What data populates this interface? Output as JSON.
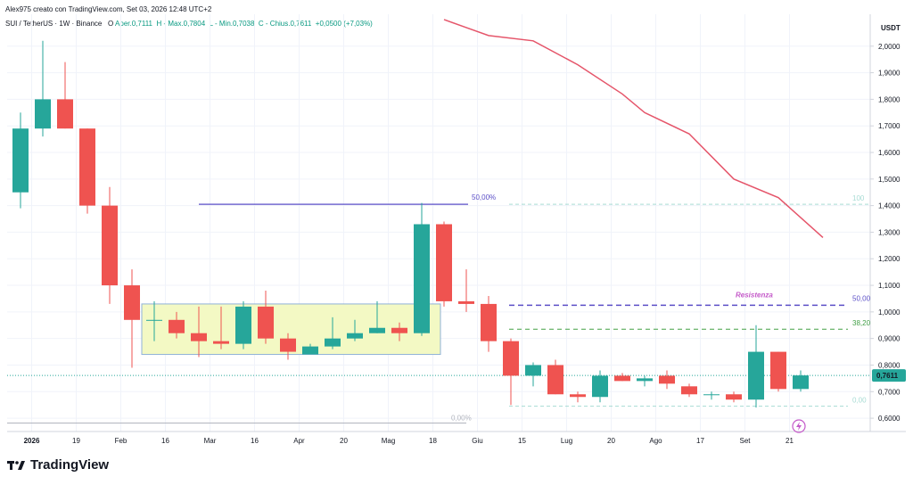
{
  "header": {
    "author_line": "Alex975 creato con TradingView.com, Set 03, 2026 12:48 UTC+2",
    "symbol": "SUI / TetherUS · 1W · Binance",
    "open_label": "O",
    "open_value": "Aper.0,7111",
    "high_value": "H - Max.0,7804",
    "low_value": "L - Min.0,7038",
    "close_value": "C - Chius.0,7611",
    "change_value": "+0,0500 (+7,03%)"
  },
  "footer": {
    "brand": "TradingView"
  },
  "colors": {
    "up": "#26a69a",
    "down": "#ef5350",
    "ma": "#e5556a",
    "box_fill": "#f3f9c4",
    "box_stroke": "#8fb1d8",
    "resistance": "#5b4fc7",
    "fib_green": "#43a047",
    "last_price_bg": "#26a69a"
  },
  "chart_data": {
    "type": "candlestick",
    "unit": "USDT",
    "y_axis": {
      "ticks": [
        "2,0000",
        "1,9000",
        "1,8000",
        "1,7000",
        "1,6000",
        "1,5000",
        "1,4000",
        "1,3000",
        "1,2000",
        "1,1000",
        "1,0000",
        "0,9000",
        "0,8000",
        "0,7000",
        "0,6000"
      ],
      "tick_values": [
        2.0,
        1.9,
        1.8,
        1.7,
        1.6,
        1.5,
        1.4,
        1.3,
        1.2,
        1.1,
        1.0,
        0.9,
        0.8,
        0.7,
        0.6
      ],
      "range": [
        0.55,
        2.12
      ],
      "scale": "linear"
    },
    "x_axis": {
      "labels": [
        "2026",
        "19",
        "Feb",
        "16",
        "Mar",
        "16",
        "Apr",
        "20",
        "Mag",
        "18",
        "Giu",
        "15",
        "Lug",
        "20",
        "Ago",
        "17",
        "Set",
        "21"
      ],
      "label_index": [
        1,
        3,
        5,
        7,
        9,
        11,
        13,
        15,
        17,
        19,
        21,
        23,
        25,
        27,
        29,
        31,
        33,
        35
      ]
    },
    "candles": [
      {
        "o": 1.45,
        "h": 1.75,
        "l": 1.39,
        "c": 1.69
      },
      {
        "o": 1.69,
        "h": 2.02,
        "l": 1.66,
        "c": 1.8
      },
      {
        "o": 1.8,
        "h": 1.94,
        "l": 1.69,
        "c": 1.69
      },
      {
        "o": 1.69,
        "h": 1.69,
        "l": 1.37,
        "c": 1.4
      },
      {
        "o": 1.4,
        "h": 1.47,
        "l": 1.03,
        "c": 1.1
      },
      {
        "o": 1.1,
        "h": 1.16,
        "l": 0.79,
        "c": 0.97
      },
      {
        "o": 0.97,
        "h": 1.04,
        "l": 0.89,
        "c": 0.97
      },
      {
        "o": 0.97,
        "h": 1.0,
        "l": 0.9,
        "c": 0.92
      },
      {
        "o": 0.92,
        "h": 1.02,
        "l": 0.83,
        "c": 0.89
      },
      {
        "o": 0.89,
        "h": 1.02,
        "l": 0.86,
        "c": 0.88
      },
      {
        "o": 0.88,
        "h": 1.04,
        "l": 0.86,
        "c": 1.02
      },
      {
        "o": 1.02,
        "h": 1.08,
        "l": 0.88,
        "c": 0.9
      },
      {
        "o": 0.9,
        "h": 0.92,
        "l": 0.82,
        "c": 0.85
      },
      {
        "o": 0.84,
        "h": 0.88,
        "l": 0.84,
        "c": 0.87
      },
      {
        "o": 0.87,
        "h": 0.98,
        "l": 0.86,
        "c": 0.9
      },
      {
        "o": 0.9,
        "h": 0.97,
        "l": 0.89,
        "c": 0.92
      },
      {
        "o": 0.92,
        "h": 1.04,
        "l": 0.92,
        "c": 0.94
      },
      {
        "o": 0.94,
        "h": 0.96,
        "l": 0.89,
        "c": 0.92
      },
      {
        "o": 0.92,
        "h": 1.41,
        "l": 0.91,
        "c": 1.33
      },
      {
        "o": 1.33,
        "h": 1.34,
        "l": 1.02,
        "c": 1.04
      },
      {
        "o": 1.04,
        "h": 1.16,
        "l": 1.0,
        "c": 1.03
      },
      {
        "o": 1.03,
        "h": 1.06,
        "l": 0.85,
        "c": 0.89
      },
      {
        "o": 0.89,
        "h": 0.9,
        "l": 0.65,
        "c": 0.76
      },
      {
        "o": 0.76,
        "h": 0.81,
        "l": 0.72,
        "c": 0.8
      },
      {
        "o": 0.8,
        "h": 0.82,
        "l": 0.69,
        "c": 0.69
      },
      {
        "o": 0.69,
        "h": 0.7,
        "l": 0.66,
        "c": 0.68
      },
      {
        "o": 0.68,
        "h": 0.78,
        "l": 0.66,
        "c": 0.76
      },
      {
        "o": 0.76,
        "h": 0.77,
        "l": 0.74,
        "c": 0.74
      },
      {
        "o": 0.74,
        "h": 0.76,
        "l": 0.72,
        "c": 0.75
      },
      {
        "o": 0.76,
        "h": 0.78,
        "l": 0.71,
        "c": 0.73
      },
      {
        "o": 0.72,
        "h": 0.73,
        "l": 0.68,
        "c": 0.69
      },
      {
        "o": 0.69,
        "h": 0.7,
        "l": 0.67,
        "c": 0.69
      },
      {
        "o": 0.69,
        "h": 0.7,
        "l": 0.66,
        "c": 0.67
      },
      {
        "o": 0.67,
        "h": 0.95,
        "l": 0.64,
        "c": 0.85
      },
      {
        "o": 0.85,
        "h": 0.85,
        "l": 0.7,
        "c": 0.71
      },
      {
        "o": 0.71,
        "h": 0.78,
        "l": 0.7,
        "c": 0.7611
      }
    ],
    "moving_average": {
      "points": [
        [
          19,
          2.1
        ],
        [
          20,
          2.07
        ],
        [
          21,
          2.04
        ],
        [
          23,
          2.02
        ],
        [
          25,
          1.93
        ],
        [
          27,
          1.82
        ],
        [
          28,
          1.75
        ],
        [
          30,
          1.67
        ],
        [
          32,
          1.5
        ],
        [
          34,
          1.43
        ],
        [
          36,
          1.28
        ]
      ]
    },
    "annotations": {
      "resistance_label": "Resistenza",
      "fib_50_left": "50,00%",
      "fib_0_left": "0,00%",
      "fib_100_right": "100",
      "fib_50_right": "50,00",
      "fib_38_right": "38,20",
      "fib_0_right": "0,00",
      "resistance_price": 1.025,
      "fib38_price": 0.935,
      "fib0_price": 0.645,
      "fib100_price": 1.405,
      "purple_line_price": 1.405,
      "box": {
        "top": 1.03,
        "bottom": 0.84,
        "x_start": 6,
        "x_end": 19
      }
    },
    "last_price": "0,7611",
    "last_price_value": 0.7611
  }
}
